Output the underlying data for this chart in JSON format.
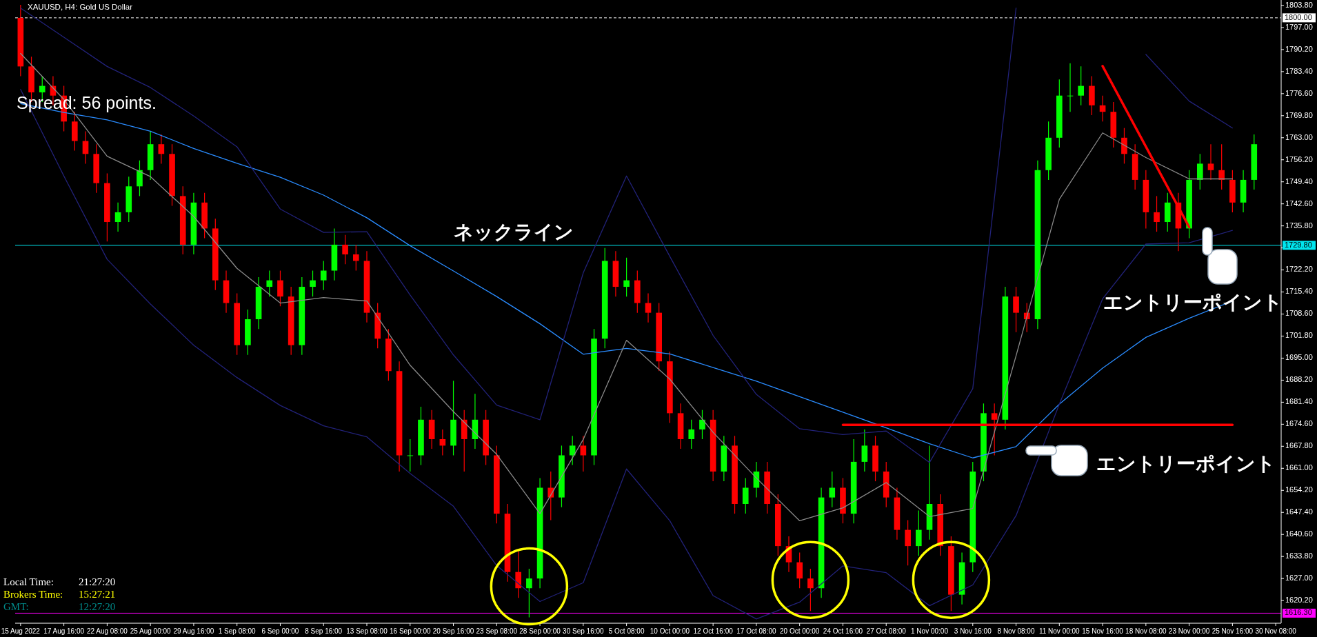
{
  "chart_data": {
    "type": "candlestick",
    "title": "XAUUSD, H4:  Gold US Dollar",
    "categories": [
      "15 Aug 2022",
      null,
      null,
      null,
      "17 Aug 16:00",
      null,
      null,
      null,
      "22 Aug 08:00",
      null,
      null,
      null,
      "25 Aug 00:00",
      null,
      null,
      null,
      "29 Aug 16:00",
      null,
      null,
      null,
      "1 Sep 08:00",
      null,
      null,
      null,
      "6 Sep 00:00",
      null,
      null,
      null,
      "8 Sep 16:00",
      null,
      null,
      null,
      "13 Sep 08:00",
      null,
      null,
      null,
      "16 Sep 00:00",
      null,
      null,
      null,
      "20 Sep 16:00",
      null,
      null,
      null,
      "23 Sep 08:00",
      null,
      null,
      null,
      "28 Sep 00:00",
      null,
      null,
      null,
      "30 Sep 16:00",
      null,
      null,
      null,
      "5 Oct 08:00",
      null,
      null,
      null,
      "10 Oct 00:00",
      null,
      null,
      null,
      "12 Oct 16:00",
      null,
      null,
      null,
      "17 Oct 08:00",
      null,
      null,
      null,
      "20 Oct 00:00",
      null,
      null,
      null,
      "24 Oct 16:00",
      null,
      null,
      null,
      "27 Oct 08:00",
      null,
      null,
      null,
      "1 Nov 00:00",
      null,
      null,
      null,
      "3 Nov 16:00",
      null,
      null,
      null,
      "8 Nov 08:00",
      null,
      null,
      null,
      "11 Nov 00:00",
      null,
      null,
      null,
      "15 Nov 16:00",
      null,
      null,
      null,
      "18 Nov 08:00",
      null,
      null,
      null,
      "23 Nov 00:00",
      null,
      null,
      null,
      "25 Nov 16:00",
      null,
      null,
      null,
      "30 Nov 08:00"
    ],
    "ylim": [
      1613.2,
      1805.5
    ],
    "yticks": [
      {
        "value": 1803.8,
        "label": "1803.80"
      },
      {
        "value": 1797,
        "label": "1797.00"
      },
      {
        "value": 1790.2,
        "label": "1790.20"
      },
      {
        "value": 1783.4,
        "label": "1783.40"
      },
      {
        "value": 1776.6,
        "label": "1776.60"
      },
      {
        "value": 1769.8,
        "label": "1769.80"
      },
      {
        "value": 1763,
        "label": "1763.00"
      },
      {
        "value": 1756.2,
        "label": "1756.20"
      },
      {
        "value": 1749.4,
        "label": "1749.40"
      },
      {
        "value": 1742.6,
        "label": "1742.60"
      },
      {
        "value": 1735.8,
        "label": "1735.80"
      },
      {
        "value": 1729,
        "label": null
      },
      {
        "value": 1722.2,
        "label": "1722.20"
      },
      {
        "value": 1715.4,
        "label": "1715.40"
      },
      {
        "value": 1708.6,
        "label": "1708.60"
      },
      {
        "value": 1701.8,
        "label": "1701.80"
      },
      {
        "value": 1695,
        "label": "1695.00"
      },
      {
        "value": 1688.2,
        "label": "1688.20"
      },
      {
        "value": 1681.4,
        "label": "1681.40"
      },
      {
        "value": 1674.6,
        "label": "1674.60"
      },
      {
        "value": 1667.8,
        "label": "1667.80"
      },
      {
        "value": 1661,
        "label": "1661.00"
      },
      {
        "value": 1654.2,
        "label": "1654.20"
      },
      {
        "value": 1647.4,
        "label": "1647.40"
      },
      {
        "value": 1640.6,
        "label": "1640.60"
      },
      {
        "value": 1633.8,
        "label": "1633.80"
      },
      {
        "value": 1627,
        "label": "1627.00"
      },
      {
        "value": 1620.2,
        "label": "1620.20"
      }
    ],
    "series": [
      {
        "type": "line",
        "color": "#2a8cff",
        "x": [
          "15 Aug 2022",
          "17 Aug 16:00",
          "22 Aug 08:00",
          "25 Aug 00:00",
          "29 Aug 16:00",
          "1 Sep 08:00",
          "6 Sep 00:00",
          "8 Sep 16:00",
          "13 Sep 08:00",
          "16 Sep 00:00",
          "20 Sep 16:00",
          "23 Sep 08:00",
          "28 Sep 00:00",
          "30 Sep 16:00",
          "5 Oct 08:00",
          "10 Oct 00:00",
          "12 Oct 16:00",
          "17 Oct 08:00",
          "20 Oct 00:00",
          "24 Oct 16:00",
          "27 Oct 08:00",
          "1 Nov 00:00",
          "3 Nov 16:00",
          "8 Nov 08:00",
          "11 Nov 00:00",
          "15 Nov 16:00",
          "18 Nov 08:00",
          "23 Nov 00:00",
          "25 Nov 16:00"
        ],
        "values": [
          1773.5,
          1770.8,
          1768.5,
          1765,
          1759.7,
          1755.1,
          1750.8,
          1745.3,
          1738.3,
          1729.7,
          1721.9,
          1714,
          1705.6,
          1696.2,
          1698,
          1696.3,
          1692.1,
          1687.9,
          1683.1,
          1678.3,
          1673.5,
          1668.6,
          1664.2,
          1667.7,
          1680.8,
          1691.9,
          1701.4,
          1707.3,
          1712.6
        ]
      },
      {
        "type": "line",
        "color": "#22227a",
        "x": [
          "15 Aug 2022",
          "17 Aug 16:00",
          "22 Aug 08:00",
          "25 Aug 00:00",
          "29 Aug 16:00",
          "1 Sep 08:00",
          "6 Sep 00:00",
          "8 Sep 16:00",
          "13 Sep 08:00",
          "16 Sep 00:00",
          "20 Sep 16:00",
          "23 Sep 08:00",
          "28 Sep 00:00",
          "30 Sep 16:00",
          "5 Oct 08:00",
          "10 Oct 00:00",
          "12 Oct 16:00",
          "17 Oct 08:00",
          "20 Oct 00:00",
          "24 Oct 16:00",
          "27 Oct 08:00",
          "1 Nov 00:00",
          "3 Nov 16:00",
          "8 Nov 08:00",
          "11 Nov 00:00",
          "15 Nov 16:00",
          "18 Nov 08:00",
          "23 Nov 00:00",
          "25 Nov 16:00"
        ],
        "values": [
          1803,
          1794,
          1785,
          1778.5,
          1769.7,
          1760.2,
          1741,
          1733.8,
          1734,
          1714.5,
          1696,
          1680.5,
          1676,
          1721.3,
          1751.2,
          1726.4,
          1702,
          1683.8,
          1673.2,
          1671.4,
          1672.5,
          1662.8,
          1685.6,
          1803,
          null,
          null,
          1788.7,
          1774.3,
          1766
        ]
      },
      {
        "type": "line",
        "color": "#22227a",
        "x": [
          "15 Aug 2022",
          "17 Aug 16:00",
          "22 Aug 08:00",
          "25 Aug 00:00",
          "29 Aug 16:00",
          "1 Sep 08:00",
          "6 Sep 00:00",
          "8 Sep 16:00",
          "13 Sep 08:00",
          "16 Sep 00:00",
          "20 Sep 16:00",
          "23 Sep 08:00",
          "28 Sep 00:00",
          "30 Sep 16:00",
          "5 Oct 08:00",
          "10 Oct 00:00",
          "12 Oct 16:00",
          "17 Oct 08:00",
          "20 Oct 00:00",
          "24 Oct 16:00",
          "27 Oct 08:00",
          "1 Nov 00:00",
          "3 Nov 16:00",
          "8 Nov 08:00",
          "11 Nov 00:00",
          "15 Nov 16:00",
          "18 Nov 08:00",
          "23 Nov 00:00",
          "25 Nov 16:00"
        ],
        "values": [
          1777.9,
          1751.2,
          1725.5,
          1711.7,
          1699,
          1689,
          1680.4,
          1674.1,
          1670.7,
          1659.4,
          1649.3,
          1631,
          1619.9,
          1625.7,
          1660.8,
          1644.8,
          1621.7,
          1614.5,
          1619.7,
          1630.9,
          1628.8,
          1618.6,
          1625,
          1646.4,
          1680.8,
          1713.3,
          1730.2,
          1730.6,
          1734.4
        ]
      },
      {
        "type": "line",
        "color": "#8a8a8a",
        "x": [
          "15 Aug 2022",
          "17 Aug 16:00",
          "22 Aug 08:00",
          "25 Aug 00:00",
          "29 Aug 16:00",
          "1 Sep 08:00",
          "6 Sep 00:00",
          "8 Sep 16:00",
          "13 Sep 08:00",
          "16 Sep 00:00",
          "20 Sep 16:00",
          "23 Sep 08:00",
          "28 Sep 00:00",
          "30 Sep 16:00",
          "5 Oct 08:00",
          "10 Oct 00:00",
          "12 Oct 16:00",
          "17 Oct 08:00",
          "20 Oct 00:00",
          "24 Oct 16:00",
          "27 Oct 08:00",
          "1 Nov 00:00",
          "3 Nov 16:00",
          "8 Nov 08:00",
          "11 Nov 00:00",
          "15 Nov 16:00",
          "18 Nov 08:00",
          "23 Nov 00:00",
          "25 Nov 16:00"
        ],
        "values": [
          1789,
          1774.8,
          1757.3,
          1751,
          1738.7,
          1722.7,
          1712,
          1713.7,
          1712.6,
          1692.8,
          1678.5,
          1665.3,
          1647,
          1669.9,
          1700.5,
          1688.5,
          1672.1,
          1658,
          1644.8,
          1648.8,
          1656.6,
          1646.1,
          1648.6,
          1695.7,
          1744,
          1764.5,
          1756.9,
          1750.3,
          1750.3
        ]
      },
      {
        "ohlc": [
          [
            1800,
            1804,
            1782,
            1785
          ],
          [
            1785,
            1788,
            1774,
            1777
          ],
          [
            1777,
            1782,
            1774,
            1779
          ],
          [
            1779,
            1782,
            1773,
            1776
          ],
          [
            1776,
            1779,
            1765,
            1768
          ],
          [
            1768,
            1771,
            1759,
            1762
          ],
          [
            1762,
            1765,
            1755,
            1758
          ],
          [
            1758,
            1761,
            1746,
            1749
          ],
          [
            1749,
            1752,
            1731,
            1737
          ],
          [
            1737,
            1743,
            1734,
            1740
          ],
          [
            1740,
            1751,
            1737,
            1748
          ],
          [
            1748,
            1756,
            1745,
            1753
          ],
          [
            1753,
            1765,
            1750,
            1761
          ],
          [
            1761,
            1764,
            1755,
            1758
          ],
          [
            1758,
            1761,
            1742,
            1745
          ],
          [
            1745,
            1748,
            1727,
            1730
          ],
          [
            1730,
            1746,
            1727,
            1743
          ],
          [
            1743,
            1746,
            1732,
            1735
          ],
          [
            1735,
            1738,
            1716,
            1719
          ],
          [
            1719,
            1722,
            1709,
            1712
          ],
          [
            1712,
            1715,
            1696,
            1699
          ],
          [
            1699,
            1710,
            1696,
            1707
          ],
          [
            1707,
            1720,
            1704,
            1717
          ],
          [
            1717,
            1722,
            1714,
            1719
          ],
          [
            1719,
            1722,
            1711,
            1714
          ],
          [
            1714,
            1717,
            1696,
            1699
          ],
          [
            1699,
            1720,
            1696,
            1717
          ],
          [
            1717,
            1722,
            1714,
            1719
          ],
          [
            1719,
            1725,
            1716,
            1722
          ],
          [
            1722,
            1735,
            1719,
            1730
          ],
          [
            1730,
            1733,
            1724,
            1727
          ],
          [
            1727,
            1730,
            1722,
            1725
          ],
          [
            1725,
            1728,
            1706,
            1709
          ],
          [
            1709,
            1712,
            1698,
            1701
          ],
          [
            1701,
            1704,
            1688,
            1691
          ],
          [
            1691,
            1694,
            1660,
            1665
          ],
          [
            1665,
            1670,
            1660,
            1665
          ],
          [
            1665,
            1680,
            1662,
            1676
          ],
          [
            1676,
            1679,
            1667,
            1670
          ],
          [
            1670,
            1673,
            1665,
            1668
          ],
          [
            1668,
            1688,
            1665,
            1676
          ],
          [
            1676,
            1679,
            1660,
            1670
          ],
          [
            1670,
            1684,
            1667,
            1676
          ],
          [
            1676,
            1679,
            1662,
            1665
          ],
          [
            1665,
            1668,
            1644,
            1647
          ],
          [
            1647,
            1650,
            1626,
            1629
          ],
          [
            1629,
            1636,
            1621,
            1624
          ],
          [
            1624,
            1630,
            1615,
            1627
          ],
          [
            1627,
            1658,
            1624,
            1655
          ],
          [
            1655,
            1660,
            1645,
            1652
          ],
          [
            1652,
            1668,
            1649,
            1665
          ],
          [
            1665,
            1671,
            1662,
            1668
          ],
          [
            1668,
            1671,
            1660,
            1665
          ],
          [
            1665,
            1704,
            1662,
            1701
          ],
          [
            1701,
            1729,
            1698,
            1725
          ],
          [
            1725,
            1728,
            1714,
            1717
          ],
          [
            1717,
            1726,
            1714,
            1719
          ],
          [
            1719,
            1722,
            1709,
            1712
          ],
          [
            1712,
            1715,
            1706,
            1709
          ],
          [
            1709,
            1712,
            1691,
            1694
          ],
          [
            1694,
            1697,
            1675,
            1678
          ],
          [
            1678,
            1681,
            1667,
            1670
          ],
          [
            1670,
            1676,
            1667,
            1673
          ],
          [
            1673,
            1679,
            1670,
            1676
          ],
          [
            1676,
            1679,
            1657,
            1660
          ],
          [
            1660,
            1671,
            1657,
            1668
          ],
          [
            1668,
            1671,
            1647,
            1650
          ],
          [
            1650,
            1658,
            1647,
            1655
          ],
          [
            1655,
            1663,
            1652,
            1660
          ],
          [
            1660,
            1663,
            1647,
            1650
          ],
          [
            1650,
            1653,
            1634,
            1637
          ],
          [
            1637,
            1640,
            1629,
            1632
          ],
          [
            1632,
            1635,
            1624,
            1627
          ],
          [
            1627,
            1630,
            1617,
            1624
          ],
          [
            1624,
            1655,
            1621,
            1652
          ],
          [
            1652,
            1660,
            1649,
            1655
          ],
          [
            1655,
            1658,
            1644,
            1647
          ],
          [
            1647,
            1670,
            1644,
            1663
          ],
          [
            1663,
            1673,
            1660,
            1668
          ],
          [
            1668,
            1671,
            1657,
            1660
          ],
          [
            1660,
            1663,
            1649,
            1652
          ],
          [
            1652,
            1655,
            1639,
            1642
          ],
          [
            1642,
            1645,
            1631,
            1637
          ],
          [
            1637,
            1648,
            1634,
            1642
          ],
          [
            1642,
            1668,
            1639,
            1650
          ],
          [
            1650,
            1653,
            1634,
            1637
          ],
          [
            1637,
            1640,
            1617,
            1622
          ],
          [
            1622,
            1635,
            1619,
            1632
          ],
          [
            1632,
            1663,
            1629,
            1660
          ],
          [
            1660,
            1681,
            1657,
            1678
          ],
          [
            1678,
            1681,
            1665,
            1676
          ],
          [
            1676,
            1717,
            1673,
            1714
          ],
          [
            1714,
            1717,
            1703,
            1709
          ],
          [
            1709,
            1712,
            1703,
            1707
          ],
          [
            1707,
            1756,
            1704,
            1753
          ],
          [
            1753,
            1768,
            1750,
            1763
          ],
          [
            1763,
            1781,
            1760,
            1776
          ],
          [
            1776,
            1786,
            1771,
            1776
          ],
          [
            1776,
            1785,
            1773,
            1779
          ],
          [
            1779,
            1782,
            1770,
            1773
          ],
          [
            1773,
            1776,
            1768,
            1771
          ],
          [
            1771,
            1774,
            1760,
            1763
          ],
          [
            1763,
            1766,
            1755,
            1758
          ],
          [
            1758,
            1761,
            1747,
            1750
          ],
          [
            1750,
            1753,
            1735,
            1740
          ],
          [
            1740,
            1745,
            1734,
            1737
          ],
          [
            1737,
            1746,
            1734,
            1743
          ],
          [
            1743,
            1746,
            1728,
            1735
          ],
          [
            1735,
            1753,
            1732,
            1750
          ],
          [
            1750,
            1758,
            1747,
            1755
          ],
          [
            1755,
            1761,
            1750,
            1753
          ],
          [
            1753,
            1761,
            1747,
            1750
          ],
          [
            1750,
            1753,
            1740,
            1743
          ],
          [
            1743,
            1753,
            1740,
            1750
          ],
          [
            1750,
            1764,
            1747,
            1761
          ],
          null,
          null
        ]
      },
      {
        "type": "line",
        "color": "#ff0000",
        "x": [
          "24 Oct 16:00",
          "25 Nov 16:00"
        ],
        "values": [
          1674.4,
          1674.4
        ]
      },
      {
        "type": "line",
        "color": "#ff0000",
        "x": [
          "15 Nov 16:00",
          "23 Nov 00:00"
        ],
        "values": [
          1785.1,
          1735.4
        ]
      }
    ],
    "ref_lines": [
      {
        "axis": "y",
        "value": 1800,
        "label": "1800.00",
        "color": "#ffffff",
        "line_style": "dashed"
      },
      {
        "axis": "y",
        "value": 1729.8,
        "label": "1729.80",
        "color": "#00e5ee"
      },
      {
        "axis": "y",
        "value": 1616.3,
        "label": "1616.30",
        "color": "#ff00ff"
      }
    ],
    "annotations": [
      "Spread: 56 points.",
      "Local Time:",
      "21:27:20",
      "Brokers Time:",
      "15:27:21",
      "GMT:",
      "12:27:20",
      "ネックライン",
      "エントリーポイント",
      "エントリーポイント"
    ],
    "grid": false
  }
}
